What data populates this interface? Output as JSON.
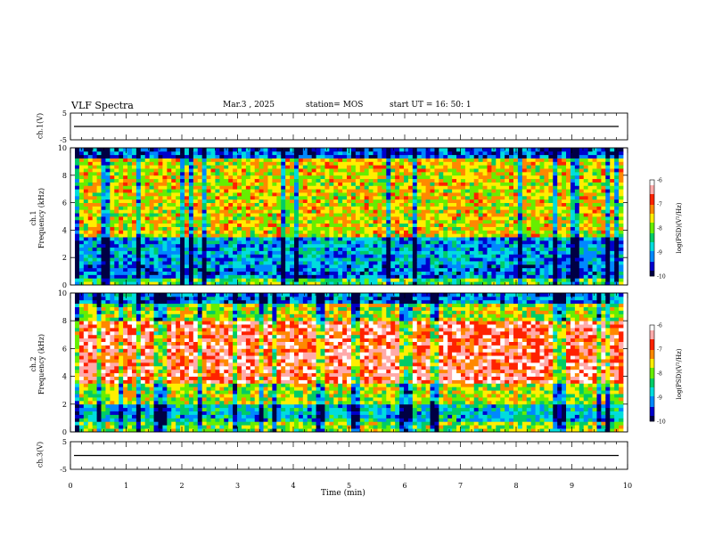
{
  "header": {
    "title": "VLF Spectra",
    "date": "Mar.3  , 2025",
    "station": "station= MOS",
    "start": "start  UT =   16: 50: 1"
  },
  "colors": {
    "scale": [
      "#000044",
      "#0000cc",
      "#0088ff",
      "#00dddd",
      "#00cc66",
      "#66ee00",
      "#ffee00",
      "#ff8800",
      "#ff2200",
      "#ffaaaa",
      "#ffffff"
    ]
  },
  "chart_data": [
    {
      "type": "line",
      "name_label": "ch.1(V)",
      "ylim": [
        -5,
        5
      ],
      "yticks": [
        "5",
        "-5"
      ],
      "baseline": 0
    },
    {
      "type": "heatmap",
      "ylabel_top": "ch.1",
      "ylabel": "Frequency (kHz)",
      "ylim": [
        0,
        10
      ],
      "yticks": [
        "0",
        "2",
        "4",
        "6",
        "8",
        "10"
      ],
      "colorbar": {
        "label": "log(PSD)(V²/Hz)",
        "ticks": [
          "-6",
          "-7",
          "-8",
          "-9",
          "-10"
        ],
        "range": [
          -10,
          -6
        ]
      }
    },
    {
      "type": "heatmap",
      "ylabel_top": "ch.2",
      "ylabel": "Frequency (kHz)",
      "ylim": [
        0,
        10
      ],
      "yticks": [
        "0",
        "2",
        "4",
        "6",
        "8",
        "10"
      ],
      "colorbar": {
        "label": "log(PSD)(V²/Hz)",
        "ticks": [
          "-6",
          "-7",
          "-8",
          "-9",
          "-10"
        ],
        "range": [
          -10,
          -6
        ]
      }
    },
    {
      "type": "line",
      "name_label": "ch.3(V)",
      "ylim": [
        -5,
        5
      ],
      "yticks": [
        "5",
        "-5"
      ],
      "baseline": 0
    }
  ],
  "xaxis": {
    "label": "Time  (min)",
    "ticks": [
      "0",
      "1",
      "2",
      "3",
      "4",
      "5",
      "6",
      "7",
      "8",
      "9",
      "10"
    ],
    "range": [
      0,
      10
    ]
  }
}
